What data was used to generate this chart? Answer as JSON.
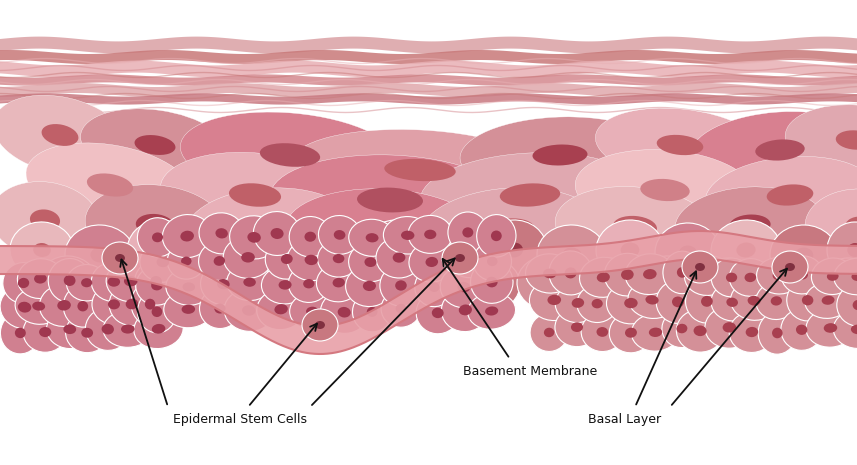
{
  "bg_color": "#ffffff",
  "membrane_fill": "#e8a0a8",
  "membrane_stroke": "#d47880",
  "arrow_color": "#111111",
  "label_color": "#111111",
  "label_fontsize": 9,
  "figsize": [
    8.57,
    4.65
  ],
  "dpi": 100,
  "labels": {
    "epidermal_stem_cells": "Epidermal Stem Cells",
    "basement_membrane": "Basement Membrane",
    "basal_layer": "Basal Layer"
  },
  "top_stripe_colors": [
    "#d4888e",
    "#e8b0b4",
    "#c87878",
    "#daa0a4"
  ],
  "cell_colors": {
    "large_pale": {
      "outer": "#e8b4b8",
      "inner": "#c06068"
    },
    "large_pink": {
      "outer": "#d48088",
      "inner": "#a84050"
    },
    "medium_pale": {
      "outer": "#e8b8bc",
      "inner": "#c06068"
    },
    "medium_pink": {
      "outer": "#d08088",
      "inner": "#a84050"
    },
    "small_pale": {
      "outer": "#e0b0b4",
      "inner": "#c06068"
    },
    "small_pink": {
      "outer": "#c87880",
      "inner": "#983848"
    },
    "small_dark": {
      "outer": "#d08090",
      "inner": "#903848"
    }
  }
}
